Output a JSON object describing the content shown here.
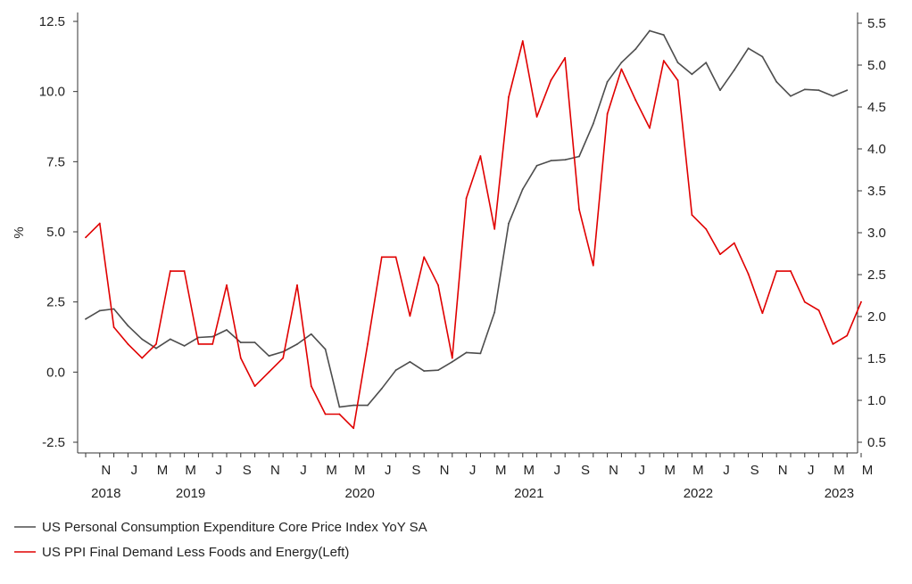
{
  "chart_data": {
    "type": "line",
    "left_axis": {
      "label": "%",
      "ylim": [
        -2.5,
        12.5
      ],
      "ticks": [
        "12.5",
        "10.0",
        "7.5",
        "5.0",
        "2.5",
        "0.0",
        "-2.5"
      ],
      "tick_values": [
        12.5,
        10.0,
        7.5,
        5.0,
        2.5,
        0.0,
        -2.5
      ]
    },
    "right_axis": {
      "ylim": [
        0.5,
        5.5
      ],
      "ticks": [
        "5.5",
        "5.0",
        "4.5",
        "4.0",
        "3.5",
        "3.0",
        "2.5",
        "2.0",
        "1.5",
        "1.0",
        "0.5"
      ],
      "tick_values": [
        5.5,
        5.0,
        4.5,
        4.0,
        3.5,
        3.0,
        2.5,
        2.0,
        1.5,
        1.0,
        0.5
      ]
    },
    "x_axis": {
      "start": "2018-10",
      "end": "2023-05",
      "month_ticks": [
        {
          "date": "2018-11",
          "label": "N"
        },
        {
          "date": "2019-01",
          "label": "J"
        },
        {
          "date": "2019-03",
          "label": "M"
        },
        {
          "date": "2019-05",
          "label": "M"
        },
        {
          "date": "2019-07",
          "label": "J"
        },
        {
          "date": "2019-09",
          "label": "S"
        },
        {
          "date": "2019-11",
          "label": "N"
        },
        {
          "date": "2020-01",
          "label": "J"
        },
        {
          "date": "2020-03",
          "label": "M"
        },
        {
          "date": "2020-05",
          "label": "M"
        },
        {
          "date": "2020-07",
          "label": "J"
        },
        {
          "date": "2020-09",
          "label": "S"
        },
        {
          "date": "2020-11",
          "label": "N"
        },
        {
          "date": "2021-01",
          "label": "J"
        },
        {
          "date": "2021-03",
          "label": "M"
        },
        {
          "date": "2021-05",
          "label": "M"
        },
        {
          "date": "2021-07",
          "label": "J"
        },
        {
          "date": "2021-09",
          "label": "S"
        },
        {
          "date": "2021-11",
          "label": "N"
        },
        {
          "date": "2022-01",
          "label": "J"
        },
        {
          "date": "2022-03",
          "label": "M"
        },
        {
          "date": "2022-05",
          "label": "M"
        },
        {
          "date": "2022-07",
          "label": "J"
        },
        {
          "date": "2022-09",
          "label": "S"
        },
        {
          "date": "2022-11",
          "label": "N"
        },
        {
          "date": "2023-01",
          "label": "J"
        },
        {
          "date": "2023-03",
          "label": "M"
        },
        {
          "date": "2023-05",
          "label": "M"
        }
      ],
      "year_labels": [
        {
          "date": "2018-11",
          "label": "2018"
        },
        {
          "date": "2019-05",
          "label": "2019"
        },
        {
          "date": "2020-05",
          "label": "2020"
        },
        {
          "date": "2021-05",
          "label": "2021"
        },
        {
          "date": "2022-05",
          "label": "2022"
        },
        {
          "date": "2023-03",
          "label": "2023"
        }
      ]
    },
    "series": [
      {
        "name": "US Personal Consumption Expenditure Core Price Index YoY SA",
        "axis": "right",
        "color": "#4d4d4d",
        "x": [
          "2018-10",
          "2018-11",
          "2018-12",
          "2019-01",
          "2019-02",
          "2019-03",
          "2019-04",
          "2019-05",
          "2019-06",
          "2019-07",
          "2019-08",
          "2019-09",
          "2019-10",
          "2019-11",
          "2019-12",
          "2020-01",
          "2020-02",
          "2020-03",
          "2020-04",
          "2020-05",
          "2020-06",
          "2020-07",
          "2020-08",
          "2020-09",
          "2020-10",
          "2020-11",
          "2020-12",
          "2021-01",
          "2021-02",
          "2021-03",
          "2021-04",
          "2021-05",
          "2021-06",
          "2021-07",
          "2021-08",
          "2021-09",
          "2021-10",
          "2021-11",
          "2021-12",
          "2022-01",
          "2022-02",
          "2022-03",
          "2022-04",
          "2022-05",
          "2022-06",
          "2022-07",
          "2022-08",
          "2022-09",
          "2022-10",
          "2022-11",
          "2022-12",
          "2023-01",
          "2023-02",
          "2023-03",
          "2023-04"
        ],
        "values": [
          1.97,
          2.07,
          2.09,
          1.89,
          1.73,
          1.62,
          1.73,
          1.65,
          1.75,
          1.76,
          1.84,
          1.69,
          1.69,
          1.53,
          1.58,
          1.67,
          1.79,
          1.61,
          0.92,
          0.94,
          0.94,
          1.14,
          1.36,
          1.46,
          1.35,
          1.36,
          1.46,
          1.57,
          1.56,
          2.05,
          3.11,
          3.52,
          3.8,
          3.86,
          3.87,
          3.91,
          4.3,
          4.8,
          5.03,
          5.19,
          5.41,
          5.36,
          5.03,
          4.89,
          5.03,
          4.7,
          4.94,
          5.2,
          5.1,
          4.8,
          4.63,
          4.71,
          4.7,
          4.63,
          4.7
        ]
      },
      {
        "name": "US PPI Final Demand Less Foods and Energy(Left)",
        "axis": "left",
        "color": "#e00000",
        "x": [
          "2018-10",
          "2018-11",
          "2018-12",
          "2019-01",
          "2019-02",
          "2019-03",
          "2019-04",
          "2019-05",
          "2019-06",
          "2019-07",
          "2019-08",
          "2019-09",
          "2019-10",
          "2019-11",
          "2019-12",
          "2020-01",
          "2020-02",
          "2020-03",
          "2020-04",
          "2020-05",
          "2020-06",
          "2020-07",
          "2020-08",
          "2020-09",
          "2020-10",
          "2020-11",
          "2020-12",
          "2021-01",
          "2021-02",
          "2021-03",
          "2021-04",
          "2021-05",
          "2021-06",
          "2021-07",
          "2021-08",
          "2021-09",
          "2021-10",
          "2021-11",
          "2021-12",
          "2022-01",
          "2022-02",
          "2022-03",
          "2022-04",
          "2022-05",
          "2022-06",
          "2022-07",
          "2022-08",
          "2022-09",
          "2022-10",
          "2022-11",
          "2022-12",
          "2023-01",
          "2023-02",
          "2023-03",
          "2023-04",
          "2023-05"
        ],
        "values": [
          4.8,
          5.3,
          1.6,
          1.0,
          0.5,
          1.0,
          3.6,
          3.6,
          1.0,
          1.0,
          3.1,
          0.5,
          -0.5,
          0.0,
          0.5,
          3.1,
          -0.5,
          -1.5,
          -1.5,
          -2.0,
          1.0,
          4.1,
          4.1,
          2.0,
          4.1,
          3.1,
          0.5,
          6.2,
          7.7,
          5.1,
          9.8,
          11.8,
          9.1,
          10.4,
          11.2,
          5.8,
          3.8,
          9.2,
          10.8,
          9.7,
          8.7,
          11.1,
          10.4,
          5.6,
          5.1,
          4.2,
          4.6,
          3.5,
          2.1,
          3.6,
          3.6,
          2.5,
          2.2,
          1.0,
          1.3,
          2.5
        ]
      }
    ]
  },
  "legend": [
    {
      "label": "US Personal Consumption Expenditure Core Price Index YoY SA",
      "color": "#4d4d4d"
    },
    {
      "label": "US PPI Final Demand Less Foods and Energy(Left)",
      "color": "#e00000"
    }
  ]
}
